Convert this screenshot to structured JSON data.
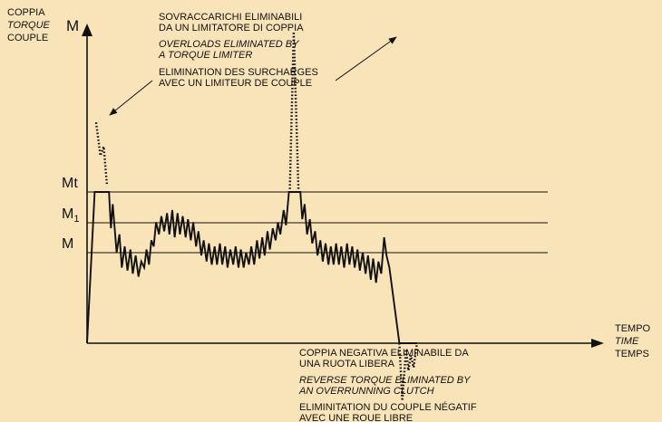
{
  "y_axis": {
    "symbol": "M",
    "label_it": "COPPIA",
    "label_en": "TORQUE",
    "label_fr": "COUPLE"
  },
  "x_axis": {
    "label_it": "TEMPO",
    "label_en": "TIME",
    "label_fr": "TEMPS"
  },
  "levels": [
    {
      "key": "mt",
      "label": "Mt"
    },
    {
      "key": "m1",
      "label": "M",
      "subscript": "1"
    },
    {
      "key": "m",
      "label": "M"
    }
  ],
  "annotations": {
    "overloads": {
      "it": [
        "SOVRACCARICHI ELIMINABILI",
        "DA UN LIMITATORE DI COPPIA"
      ],
      "en": [
        "OVERLOADS ELIMINATED BY",
        "A TORQUE LIMITER"
      ],
      "fr": [
        "ELIMINATION DES SURCHARGES",
        "AVEC UN LIMITEUR DE COUPLE"
      ]
    },
    "reverse": {
      "it": [
        "COPPIA NEGATIVA ELIMINABILE DA",
        "UNA RUOTA LIBERA"
      ],
      "en": [
        "REVERSE TORQUE ELIMINATED BY",
        "AN OVERRUNNING CLUTCH"
      ],
      "fr": [
        "ELIMINITATION DU COUPLE NÉGATIF",
        "AVEC UNE ROUE LIBRE"
      ]
    }
  },
  "colors": {
    "background": "#f9e3b8",
    "ink": "#111111"
  },
  "chart_data": {
    "type": "line",
    "title": "",
    "xlabel": "TEMPO / TIME / TEMPS",
    "ylabel": "COPPIA / TORQUE / COUPLE",
    "xlim": [
      0,
      100
    ],
    "ylim": [
      -12,
      100
    ],
    "grid": false,
    "reference_levels": [
      {
        "name": "Mt",
        "value": 50
      },
      {
        "name": "M1",
        "value": 40
      },
      {
        "name": "M",
        "value": 30
      }
    ],
    "series": [
      {
        "style": "solid",
        "points": [
          [
            0,
            0
          ],
          [
            1.6,
            50
          ],
          [
            4.6,
            50
          ],
          [
            5.0,
            38
          ],
          [
            5.4,
            46
          ],
          [
            6.2,
            30
          ],
          [
            6.8,
            36
          ],
          [
            7.3,
            25
          ],
          [
            7.9,
            32
          ],
          [
            8.5,
            24
          ],
          [
            9.1,
            31
          ],
          [
            9.6,
            23
          ],
          [
            10.2,
            29
          ],
          [
            10.8,
            22
          ],
          [
            11.4,
            27
          ],
          [
            12.0,
            25
          ],
          [
            12.5,
            31
          ],
          [
            13.0,
            26
          ],
          [
            13.5,
            34
          ],
          [
            14.0,
            32
          ],
          [
            14.5,
            40
          ],
          [
            15.1,
            36
          ],
          [
            15.6,
            42
          ],
          [
            16.2,
            37
          ],
          [
            16.8,
            43
          ],
          [
            17.3,
            36
          ],
          [
            17.9,
            44
          ],
          [
            18.4,
            35
          ],
          [
            19.0,
            43
          ],
          [
            19.5,
            36
          ],
          [
            20.1,
            42
          ],
          [
            20.7,
            35
          ],
          [
            21.2,
            41
          ],
          [
            21.8,
            34
          ],
          [
            22.3,
            40
          ],
          [
            22.9,
            32
          ],
          [
            23.4,
            37
          ],
          [
            24.0,
            29
          ],
          [
            24.5,
            34
          ],
          [
            25.1,
            27
          ],
          [
            25.6,
            33
          ],
          [
            26.2,
            26
          ],
          [
            26.8,
            32
          ],
          [
            27.3,
            26
          ],
          [
            27.9,
            33
          ],
          [
            28.4,
            26
          ],
          [
            29.0,
            32
          ],
          [
            29.5,
            25
          ],
          [
            30.1,
            31
          ],
          [
            30.7,
            26
          ],
          [
            31.2,
            32
          ],
          [
            31.8,
            25
          ],
          [
            32.3,
            31
          ],
          [
            32.9,
            25
          ],
          [
            33.4,
            30
          ],
          [
            34.0,
            26
          ],
          [
            34.5,
            32
          ],
          [
            35.1,
            26
          ],
          [
            35.7,
            34
          ],
          [
            36.2,
            28
          ],
          [
            36.8,
            35
          ],
          [
            37.3,
            29
          ],
          [
            37.9,
            37
          ],
          [
            38.4,
            31
          ],
          [
            39.0,
            38
          ],
          [
            39.6,
            34
          ],
          [
            40.1,
            40
          ],
          [
            40.6,
            36
          ],
          [
            41.3,
            44
          ],
          [
            41.8,
            39
          ],
          [
            42.4,
            50
          ],
          [
            44.8,
            50
          ],
          [
            45.2,
            41
          ],
          [
            45.7,
            46
          ],
          [
            46.2,
            36
          ],
          [
            46.8,
            41
          ],
          [
            47.3,
            33
          ],
          [
            47.9,
            37
          ],
          [
            48.4,
            29
          ],
          [
            49.0,
            34
          ],
          [
            49.5,
            27
          ],
          [
            50.1,
            33
          ],
          [
            50.7,
            26
          ],
          [
            51.2,
            32
          ],
          [
            51.8,
            26
          ],
          [
            52.3,
            33
          ],
          [
            52.9,
            26
          ],
          [
            53.4,
            32
          ],
          [
            54.0,
            25
          ],
          [
            54.6,
            33
          ],
          [
            55.1,
            26
          ],
          [
            55.7,
            32
          ],
          [
            56.2,
            25
          ],
          [
            56.8,
            31
          ],
          [
            57.3,
            24
          ],
          [
            57.9,
            30
          ],
          [
            58.5,
            23
          ],
          [
            59.0,
            29
          ],
          [
            59.6,
            21
          ],
          [
            60.1,
            28
          ],
          [
            60.7,
            20
          ],
          [
            61.2,
            27
          ],
          [
            61.8,
            23
          ],
          [
            62.4,
            35
          ],
          [
            62.9,
            29
          ],
          [
            63.5,
            25
          ],
          [
            65.6,
            0
          ],
          [
            69.3,
            0
          ]
        ]
      },
      {
        "style": "dotted",
        "points": [
          [
            1.9,
            73
          ],
          [
            2.8,
            62
          ],
          [
            3.5,
            65
          ],
          [
            4.2,
            52
          ]
        ]
      },
      {
        "style": "dotted",
        "points": [
          [
            42.6,
            51
          ],
          [
            43.4,
            103
          ],
          [
            44.4,
            51
          ]
        ]
      },
      {
        "style": "dotted",
        "points": [
          [
            65.6,
            0
          ],
          [
            66.2,
            -19
          ],
          [
            67.0,
            -2
          ],
          [
            67.5,
            -9
          ],
          [
            68.0,
            -4
          ],
          [
            68.6,
            -8
          ],
          [
            69.3,
            0
          ]
        ]
      }
    ]
  }
}
